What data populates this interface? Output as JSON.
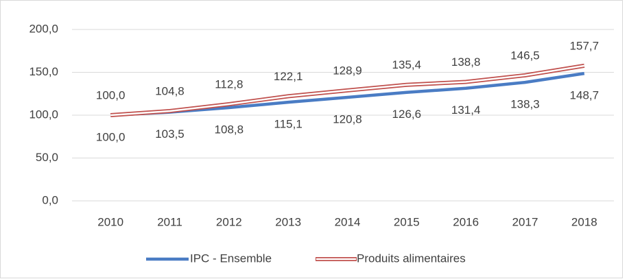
{
  "chart_data": {
    "type": "line",
    "categories": [
      "2010",
      "2011",
      "2012",
      "2013",
      "2014",
      "2015",
      "2016",
      "2017",
      "2018"
    ],
    "series": [
      {
        "name": "IPC - Ensemble",
        "color": "#4a7cc4",
        "values": [
          100.0,
          103.5,
          108.8,
          115.1,
          120.8,
          126.6,
          131.4,
          138.3,
          148.7
        ],
        "value_labels": [
          "100,0",
          "103,5",
          "108,8",
          "115,1",
          "120,8",
          "126,6",
          "131,4",
          "138,3",
          "148,7"
        ]
      },
      {
        "name": "Produits alimentaires",
        "color": "#c0504d",
        "values": [
          100.0,
          104.8,
          112.8,
          122.1,
          128.9,
          135.4,
          138.8,
          146.5,
          157.7
        ],
        "value_labels": [
          "100,0",
          "104,8",
          "112,8",
          "122,1",
          "128,9",
          "135,4",
          "138,8",
          "146,5",
          "157,7"
        ]
      }
    ],
    "ylim": [
      0,
      200
    ],
    "yticks": [
      {
        "value": 0,
        "label": "0,0"
      },
      {
        "value": 50,
        "label": "50,0"
      },
      {
        "value": 100,
        "label": "100,0"
      },
      {
        "value": 150,
        "label": "150,0"
      },
      {
        "value": 200,
        "label": "200,0"
      }
    ],
    "grid": true,
    "legend": "bottom"
  }
}
